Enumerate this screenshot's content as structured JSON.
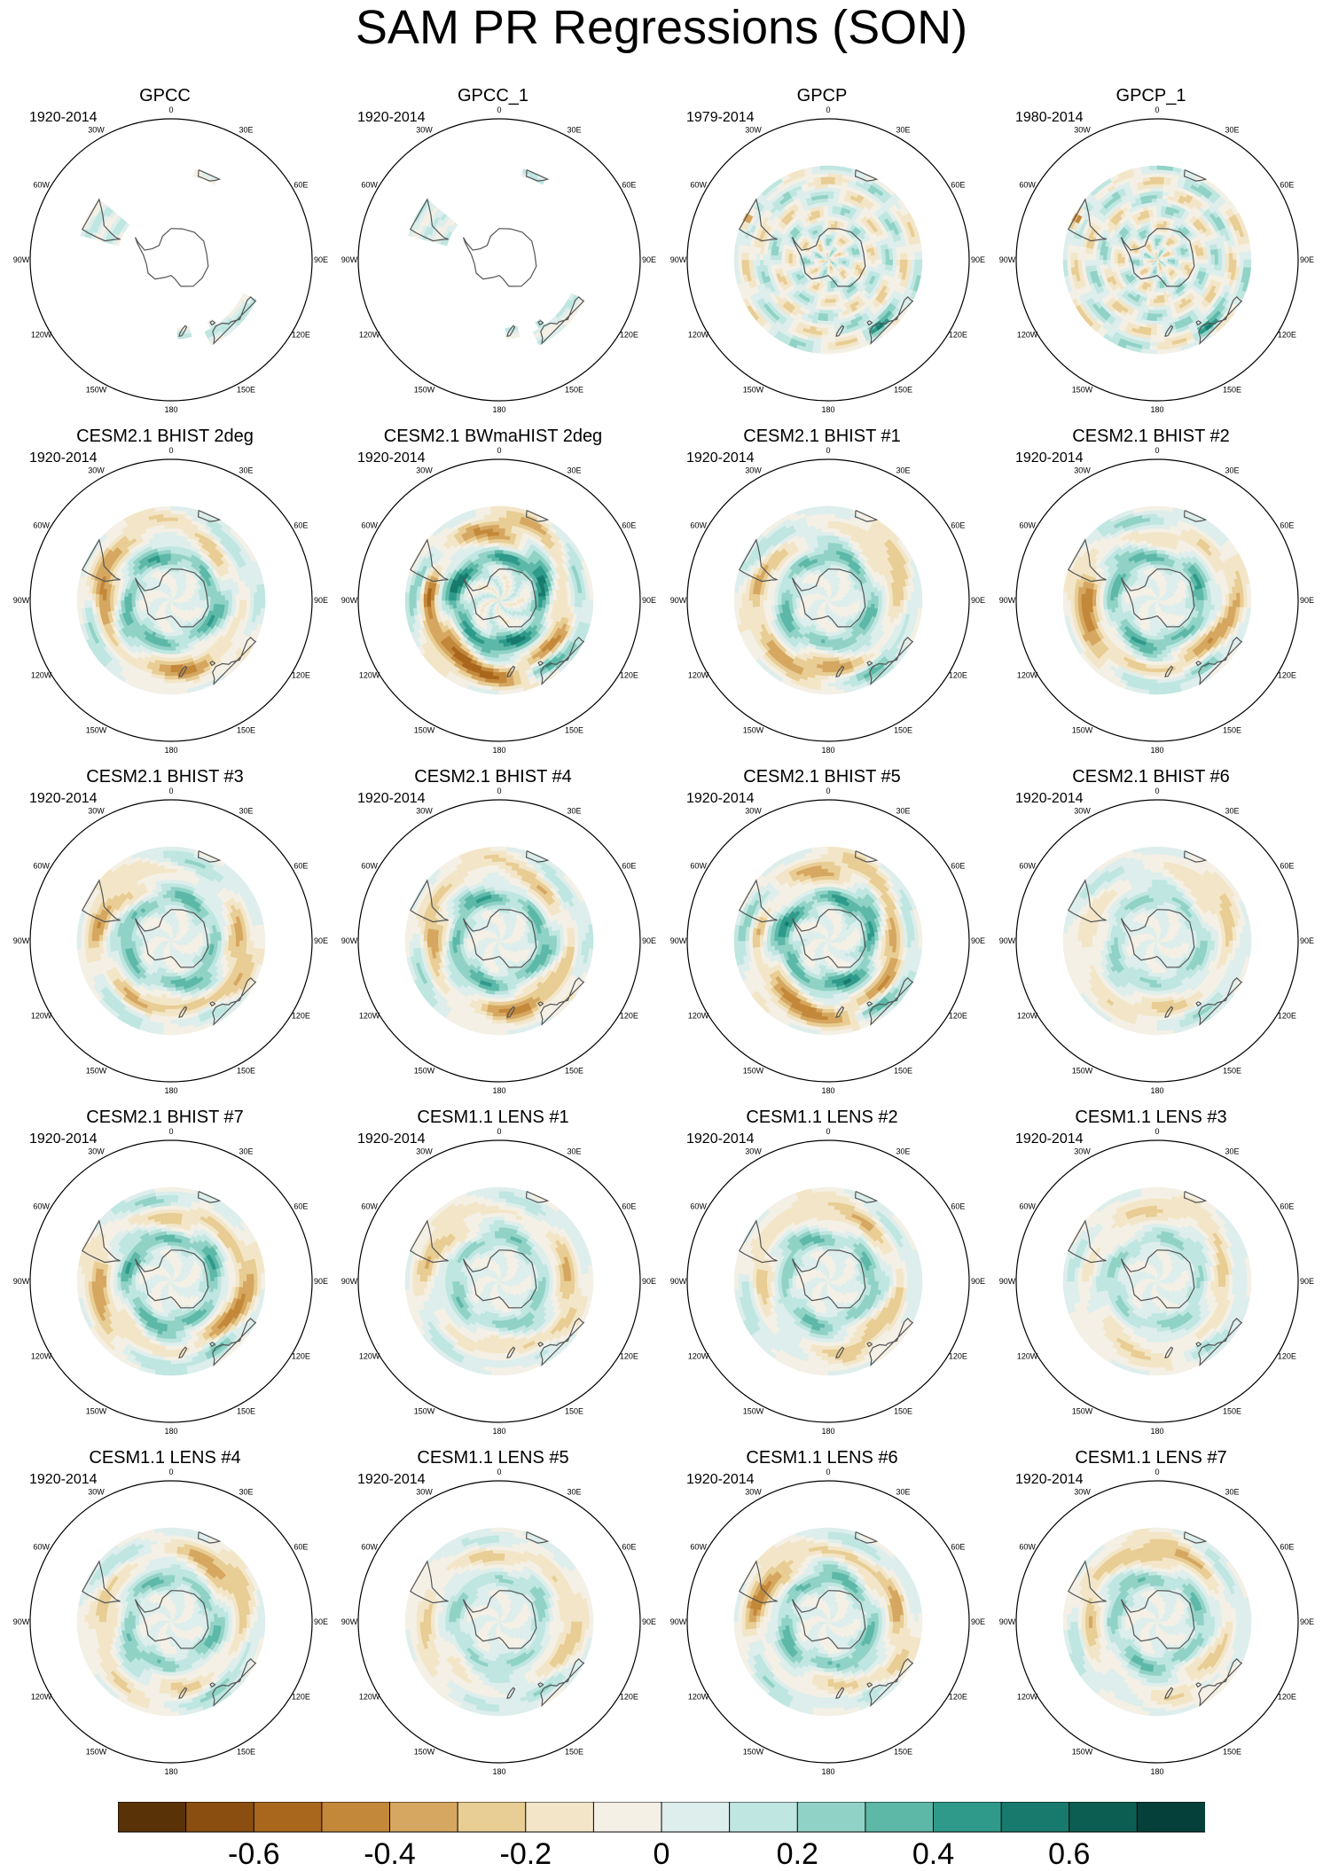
{
  "figure": {
    "title": "SAM PR Regressions (SON)"
  },
  "lon_labels": [
    "0",
    "30E",
    "60E",
    "90E",
    "120E",
    "150E",
    "180",
    "150W",
    "120W",
    "90W",
    "60W",
    "30W"
  ],
  "panels": [
    {
      "title": "GPCC",
      "period": "1920-2014",
      "type": "obs-land",
      "field": {
        "pat": "sa-land",
        "amp": 0.4
      }
    },
    {
      "title": "GPCC_1",
      "period": "1920-2014",
      "type": "obs-land",
      "field": {
        "pat": "sa-land",
        "amp": 0.3
      }
    },
    {
      "title": "GPCP",
      "period": "1979-2014",
      "type": "full",
      "field": {
        "pat": "obs-sat",
        "amp": 0.7
      }
    },
    {
      "title": "GPCP_1",
      "period": "1980-2014",
      "type": "full",
      "field": {
        "pat": "obs-sat",
        "amp": 0.75
      }
    },
    {
      "title": "CESM2.1 BHIST 2deg",
      "period": "1920-2014",
      "type": "full",
      "field": {
        "pat": "model",
        "amp": 0.55
      }
    },
    {
      "title": "CESM2.1 BWmaHIST 2deg",
      "period": "1920-2014",
      "type": "full",
      "field": {
        "pat": "model",
        "amp": 0.75
      }
    },
    {
      "title": "CESM2.1 BHIST #1",
      "period": "1920-2014",
      "type": "full",
      "field": {
        "pat": "model",
        "amp": 0.5
      }
    },
    {
      "title": "CESM2.1 BHIST #2",
      "period": "1920-2014",
      "type": "full",
      "field": {
        "pat": "model",
        "amp": 0.55
      }
    },
    {
      "title": "CESM2.1 BHIST #3",
      "period": "1920-2014",
      "type": "full",
      "field": {
        "pat": "model",
        "amp": 0.5
      }
    },
    {
      "title": "CESM2.1 BHIST #4",
      "period": "1920-2014",
      "type": "full",
      "field": {
        "pat": "model",
        "amp": 0.55
      }
    },
    {
      "title": "CESM2.1 BHIST #5",
      "period": "1920-2014",
      "type": "full",
      "field": {
        "pat": "model",
        "amp": 0.65
      }
    },
    {
      "title": "CESM2.1 BHIST #6",
      "period": "1920-2014",
      "type": "full",
      "field": {
        "pat": "model",
        "amp": 0.35
      }
    },
    {
      "title": "CESM2.1 BHIST #7",
      "period": "1920-2014",
      "type": "full",
      "field": {
        "pat": "model",
        "amp": 0.55
      }
    },
    {
      "title": "CESM1.1 LENS #1",
      "period": "1920-2014",
      "type": "full",
      "field": {
        "pat": "model",
        "amp": 0.4
      }
    },
    {
      "title": "CESM1.1 LENS #2",
      "period": "1920-2014",
      "type": "full",
      "field": {
        "pat": "model",
        "amp": 0.45
      }
    },
    {
      "title": "CESM1.1 LENS #3",
      "period": "1920-2014",
      "type": "full",
      "field": {
        "pat": "model",
        "amp": 0.35
      }
    },
    {
      "title": "CESM1.1 LENS #4",
      "period": "1920-2014",
      "type": "full",
      "field": {
        "pat": "model",
        "amp": 0.45
      }
    },
    {
      "title": "CESM1.1 LENS #5",
      "period": "1920-2014",
      "type": "full",
      "field": {
        "pat": "model",
        "amp": 0.35
      }
    },
    {
      "title": "CESM1.1 LENS #6",
      "period": "1920-2014",
      "type": "full",
      "field": {
        "pat": "model",
        "amp": 0.5
      }
    },
    {
      "title": "CESM1.1 LENS #7",
      "period": "1920-2014",
      "type": "full",
      "field": {
        "pat": "model",
        "amp": 0.45
      }
    }
  ],
  "colorbar": {
    "levels": [
      -0.7,
      -0.6,
      -0.5,
      -0.4,
      -0.3,
      -0.2,
      -0.1,
      0,
      0.1,
      0.2,
      0.3,
      0.4,
      0.5,
      0.6,
      0.7
    ],
    "colors": [
      "#5a3208",
      "#8a4f10",
      "#a9671d",
      "#c4883a",
      "#d6a760",
      "#e8cd94",
      "#f3e6c8",
      "#f4f0e6",
      "#ddeeec",
      "#bfe6e0",
      "#91d2c6",
      "#5db8a8",
      "#2f9a8a",
      "#177a6c",
      "#0d5e52",
      "#06403a"
    ],
    "labels": [
      {
        "text": "-0.6",
        "value": -0.6
      },
      {
        "text": "-0.4",
        "value": -0.4
      },
      {
        "text": "-0.2",
        "value": -0.2
      },
      {
        "text": "0",
        "value": 0
      },
      {
        "text": "0.2",
        "value": 0.2
      },
      {
        "text": "0.4",
        "value": 0.4
      },
      {
        "text": "0.6",
        "value": 0.6
      }
    ]
  }
}
